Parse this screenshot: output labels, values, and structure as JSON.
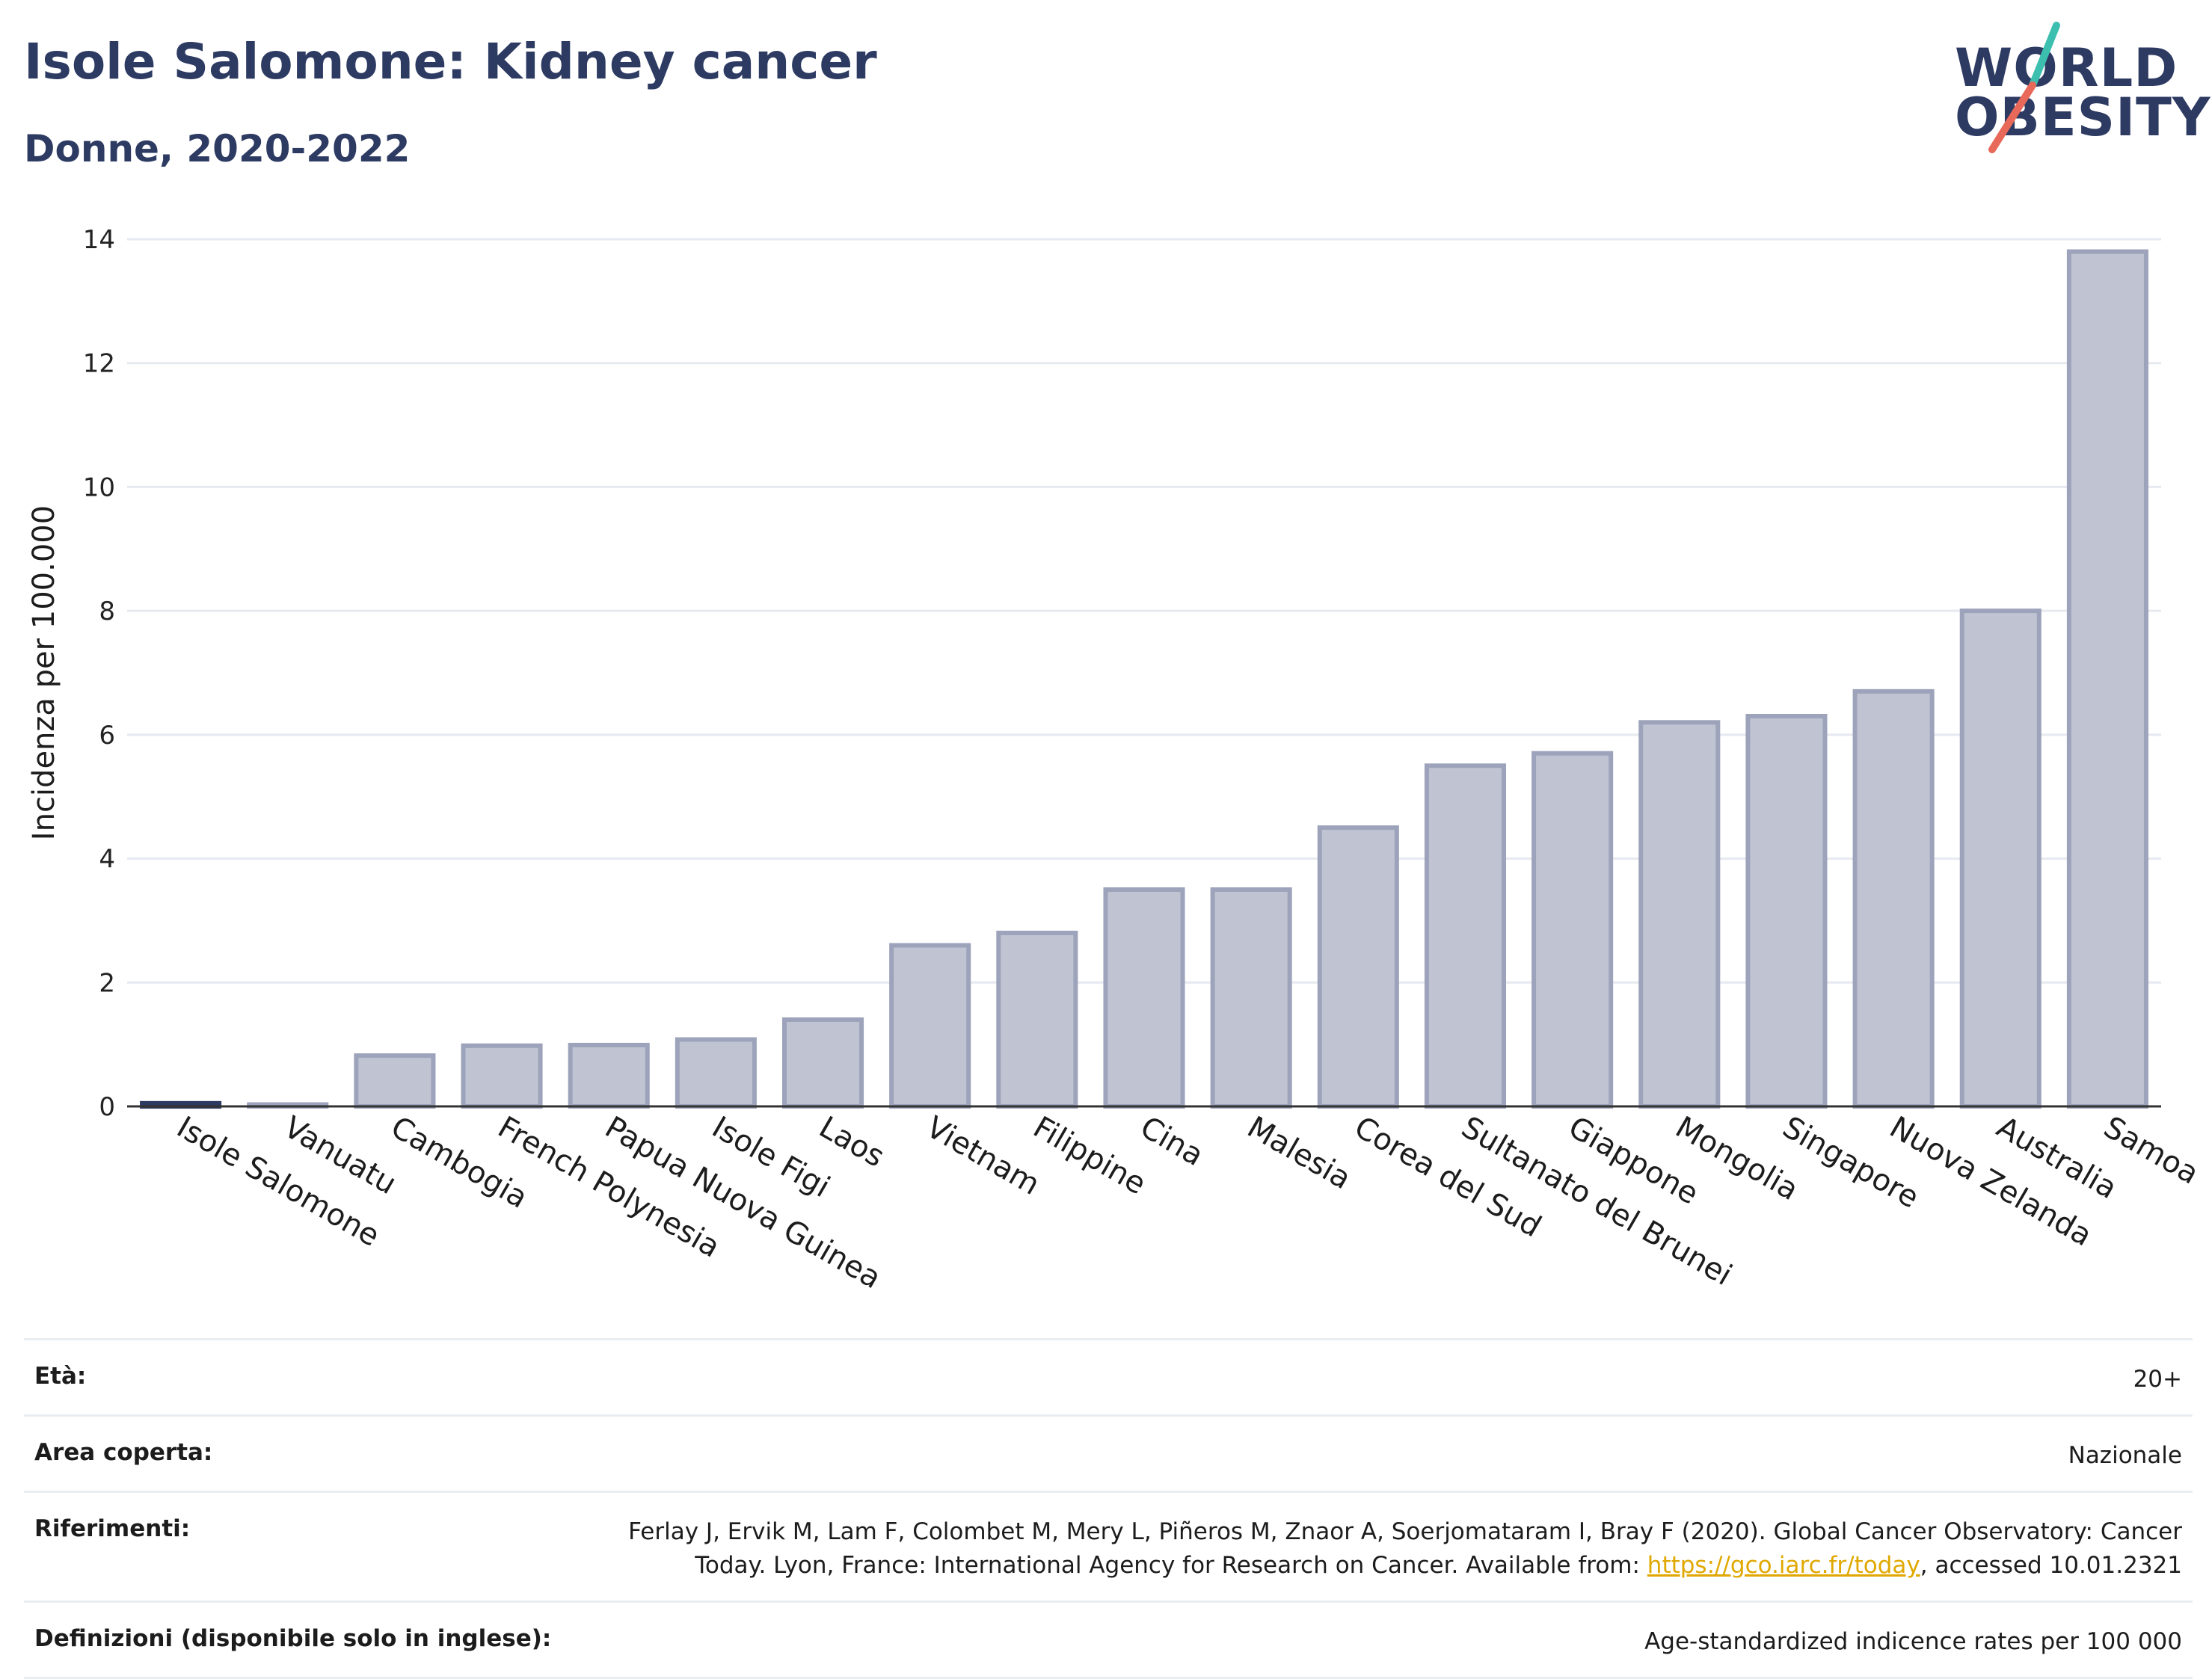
{
  "header": {
    "title": "Isole Salomone: Kidney cancer",
    "subtitle": "Donne, 2020-2022"
  },
  "logo": {
    "line1": "WORLD",
    "line2": "OBESITY",
    "accent_teal": "#3cbfae",
    "accent_red": "#e8695a"
  },
  "chart_data": {
    "type": "bar",
    "ylabel": "Incidenza per 100.000",
    "ylim": [
      0,
      14
    ],
    "yticks": [
      0,
      2,
      4,
      6,
      8,
      10,
      12,
      14
    ],
    "grid": true,
    "categories": [
      "Isole Salomone",
      "Vanuatu",
      "Cambogia",
      "French Polynesia",
      "Papua Nuova Guinea",
      "Isole Figi",
      "Laos",
      "Vietnam",
      "Filippine",
      "Cina",
      "Malesia",
      "Corea del Sud",
      "Sultanato del Brunei",
      "Giappone",
      "Mongolia",
      "Singapore",
      "Nuova Zelanda",
      "Australia",
      "Samoa"
    ],
    "values": [
      0.05,
      0.03,
      0.82,
      0.98,
      0.99,
      1.08,
      1.4,
      2.6,
      2.8,
      3.5,
      3.5,
      4.5,
      5.5,
      5.7,
      6.2,
      6.3,
      6.7,
      8.0,
      13.8
    ],
    "highlight": "Isole Salomone",
    "colors": {
      "bar_fill": "#c0c4d2",
      "bar_stroke": "#9da3ba",
      "highlight": "#2d3a62",
      "grid": "#e6e9f0",
      "axis": "#333333"
    }
  },
  "info": {
    "age_label": "Età:",
    "age_value": "20+",
    "area_label": "Area coperta:",
    "area_value": "Nazionale",
    "ref_label": "Riferimenti:",
    "ref_text_1": "Ferlay J, Ervik M, Lam F, Colombet M, Mery L, Piñeros M, Znaor A, Soerjomataram I, Bray F (2020). Global Cancer Observatory: Cancer Today. Lyon, France: International Agency for Research on Cancer. Available from: ",
    "ref_link": "https://gco.iarc.fr/today",
    "ref_text_2": ", accessed 10.01.2321",
    "def_label": "Definizioni (disponibile solo in inglese):",
    "def_value": "Age-standardized indicence rates per 100 000"
  }
}
